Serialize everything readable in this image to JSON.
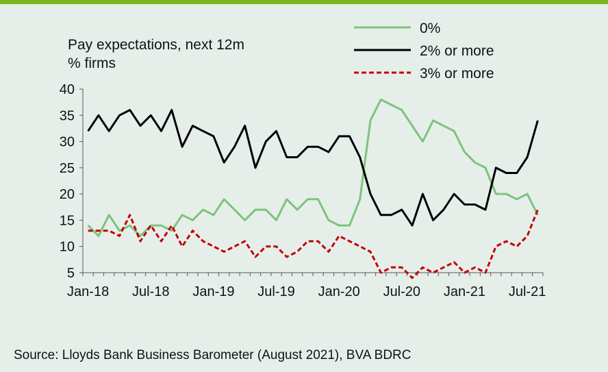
{
  "chart_data": {
    "type": "line",
    "title": "Pay expectations, next 12m",
    "subtitle": "% firms",
    "ylim": [
      5,
      40
    ],
    "yticks": [
      40,
      35,
      30,
      25,
      20,
      15,
      10,
      5
    ],
    "xtick_labels": [
      "Jan-18",
      "Jul-18",
      "Jan-19",
      "Jul-19",
      "Jan-20",
      "Jul-20",
      "Jan-21",
      "Jul-21"
    ],
    "x": [
      "Jan-18",
      "Feb-18",
      "Mar-18",
      "Apr-18",
      "May-18",
      "Jun-18",
      "Jul-18",
      "Aug-18",
      "Sep-18",
      "Oct-18",
      "Nov-18",
      "Dec-18",
      "Jan-19",
      "Feb-19",
      "Mar-19",
      "Apr-19",
      "May-19",
      "Jun-19",
      "Jul-19",
      "Aug-19",
      "Sep-19",
      "Oct-19",
      "Nov-19",
      "Dec-19",
      "Jan-20",
      "Feb-20",
      "Mar-20",
      "Apr-20",
      "May-20",
      "Jun-20",
      "Jul-20",
      "Aug-20",
      "Sep-20",
      "Oct-20",
      "Nov-20",
      "Dec-20",
      "Jan-21",
      "Feb-21",
      "Mar-21",
      "Apr-21",
      "May-21",
      "Jun-21",
      "Jul-21",
      "Aug-21"
    ],
    "grid": false,
    "legend_position": "top-right",
    "series": [
      {
        "name": "0%",
        "color": "#7cc47a",
        "style": "solid",
        "values": [
          14,
          12,
          16,
          13,
          14,
          12,
          14,
          14,
          13,
          16,
          15,
          17,
          16,
          19,
          17,
          15,
          17,
          17,
          15,
          19,
          17,
          19,
          19,
          15,
          14,
          14,
          19,
          34,
          38,
          37,
          36,
          33,
          30,
          34,
          33,
          32,
          28,
          26,
          25,
          20,
          20,
          19,
          20,
          16
        ]
      },
      {
        "name": "2% or more",
        "color": "#000000",
        "style": "solid",
        "values": [
          32,
          35,
          32,
          35,
          36,
          33,
          35,
          32,
          36,
          29,
          33,
          32,
          31,
          26,
          29,
          33,
          25,
          30,
          32,
          27,
          27,
          29,
          29,
          28,
          31,
          31,
          27,
          20,
          16,
          16,
          17,
          14,
          20,
          15,
          17,
          20,
          18,
          18,
          17,
          25,
          24,
          24,
          27,
          34
        ]
      },
      {
        "name": "3% or more",
        "color": "#c00000",
        "style": "dashed",
        "values": [
          13,
          13,
          13,
          12,
          16,
          11,
          14,
          11,
          14,
          10,
          13,
          11,
          10,
          9,
          10,
          11,
          8,
          10,
          10,
          8,
          9,
          11,
          11,
          9,
          12,
          11,
          10,
          9,
          5,
          6,
          6,
          4,
          6,
          5,
          6,
          7,
          5,
          6,
          5,
          10,
          11,
          10,
          12,
          17
        ]
      }
    ],
    "source": "Source: Lloyds Bank Business Barometer (August 2021), BVA BDRC"
  }
}
